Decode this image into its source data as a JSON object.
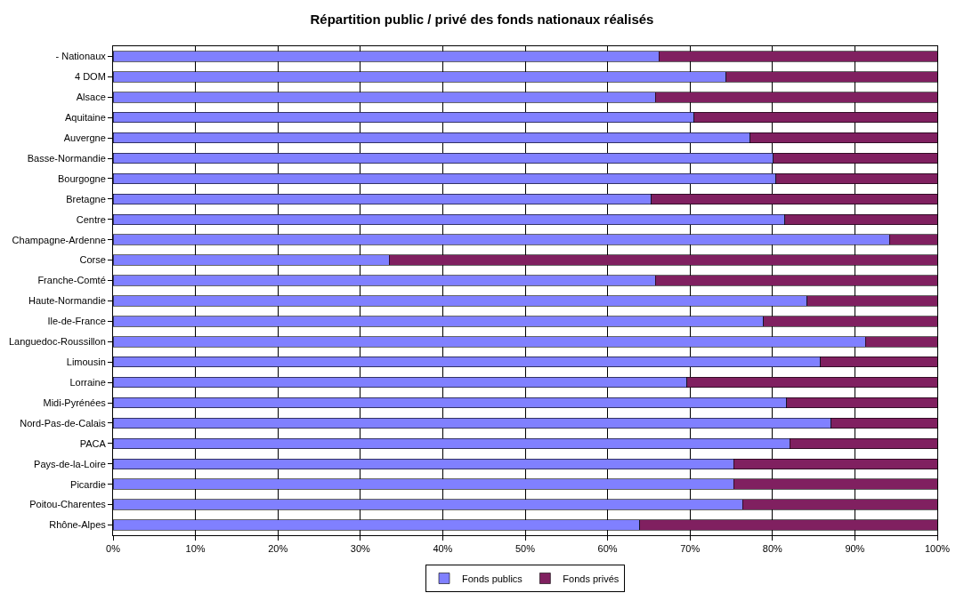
{
  "chart_data": {
    "type": "bar",
    "orientation": "horizontal",
    "stacked": true,
    "title": "Répartition public / privé des fonds nationaux réalisés",
    "categories": [
      "- Nationaux",
      "4 DOM",
      "Alsace",
      "Aquitaine",
      "Auvergne",
      "Basse-Normandie",
      "Bourgogne",
      "Bretagne",
      "Centre",
      "Champagne-Ardenne",
      "Corse",
      "Franche-Comté",
      "Haute-Normandie",
      "Ile-de-France",
      "Languedoc-Roussillon",
      "Limousin",
      "Lorraine",
      "Midi-Pyrénées",
      "Nord-Pas-de-Calais",
      "PACA",
      "Pays-de-la-Loire",
      "Picardie",
      "Poitou-Charentes",
      "Rhône-Alpes"
    ],
    "series": [
      {
        "name": "Fonds publics",
        "color": "#8080ff",
        "values": [
          66.2,
          74.4,
          65.8,
          70.5,
          77.3,
          80.1,
          80.4,
          65.3,
          81.5,
          94.2,
          33.5,
          65.8,
          84.2,
          78.9,
          91.3,
          85.8,
          69.6,
          81.7,
          87.1,
          82.1,
          75.3,
          75.3,
          76.4,
          63.9
        ]
      },
      {
        "name": "Fonds privés",
        "color": "#802060",
        "values": [
          33.8,
          25.6,
          34.2,
          29.5,
          22.7,
          19.9,
          19.6,
          34.7,
          18.5,
          5.8,
          66.5,
          34.2,
          15.8,
          21.1,
          8.7,
          14.2,
          30.4,
          18.3,
          12.9,
          17.9,
          24.7,
          24.7,
          23.6,
          36.1
        ]
      }
    ],
    "xlim": [
      0,
      100
    ],
    "xticks": [
      {
        "value": 0,
        "label": "0%"
      },
      {
        "value": 10,
        "label": "10%"
      },
      {
        "value": 20,
        "label": "20%"
      },
      {
        "value": 30,
        "label": "30%"
      },
      {
        "value": 40,
        "label": "40%"
      },
      {
        "value": 50,
        "label": "50%"
      },
      {
        "value": 60,
        "label": "60%"
      },
      {
        "value": 70,
        "label": "70%"
      },
      {
        "value": 80,
        "label": "80%"
      },
      {
        "value": 90,
        "label": "90%"
      },
      {
        "value": 100,
        "label": "100%"
      }
    ],
    "grid": "x",
    "legend": "bottom"
  }
}
